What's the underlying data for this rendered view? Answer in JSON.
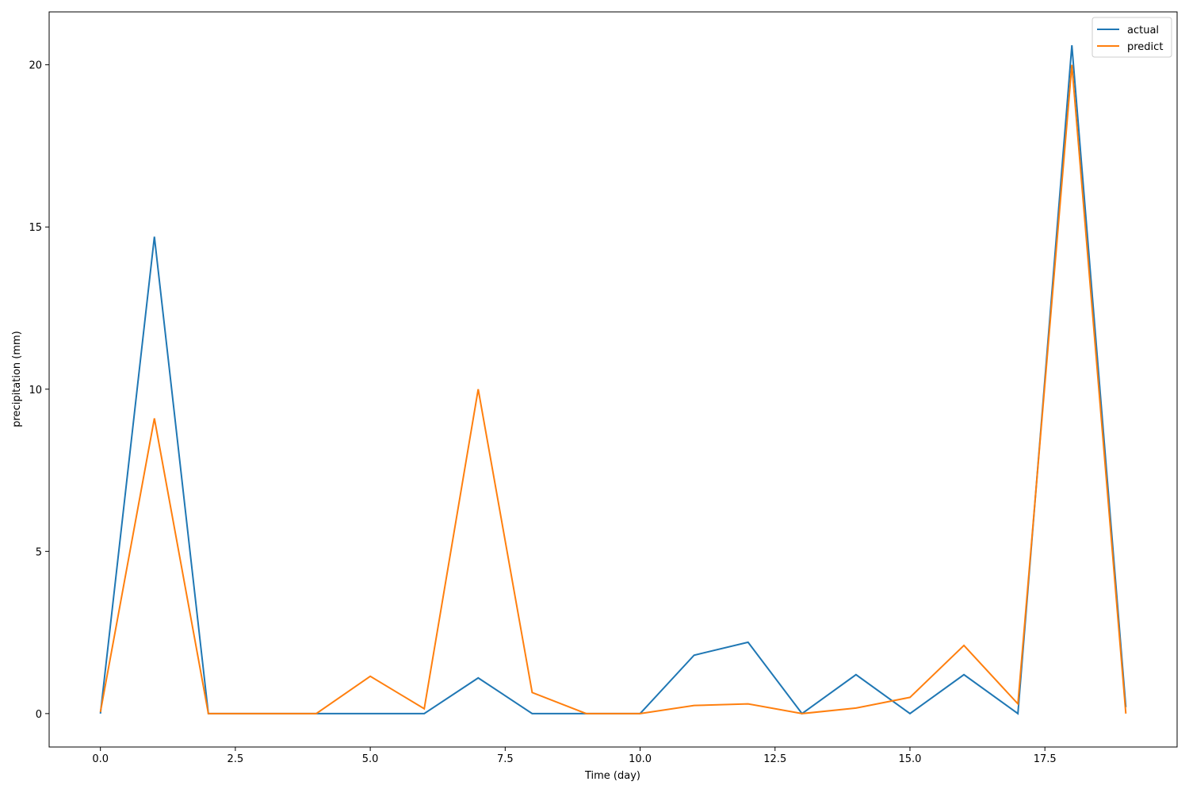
{
  "chart_data": {
    "type": "line",
    "xlabel": "Time  (day)",
    "ylabel": "precipitation  (mm)",
    "x": [
      0,
      1,
      2,
      3,
      4,
      5,
      6,
      7,
      8,
      9,
      10,
      11,
      12,
      13,
      14,
      15,
      16,
      17,
      18,
      19
    ],
    "series": [
      {
        "name": "actual",
        "color": "#1f77b4",
        "values": [
          0,
          14.7,
          0,
          0,
          0,
          0,
          0,
          1.1,
          0,
          0,
          0,
          1.8,
          2.2,
          0,
          1.2,
          0,
          1.2,
          0,
          20.6,
          0.2
        ]
      },
      {
        "name": "predict",
        "color": "#ff7f0e",
        "values": [
          0.05,
          9.1,
          0,
          0,
          0,
          1.15,
          0.15,
          10.0,
          0.65,
          0,
          0,
          0.25,
          0.3,
          0,
          0.17,
          0.5,
          2.1,
          0.3,
          20.0,
          0.0
        ]
      }
    ],
    "xlim": [
      -0.95,
      19.95
    ],
    "xticks": [
      {
        "value": 0,
        "label": "0.0"
      },
      2.5,
      {
        "value": 5,
        "label": "5.0"
      },
      7.5,
      {
        "value": 10,
        "label": "10.0"
      },
      12.5,
      {
        "value": 15,
        "label": "15.0"
      },
      17.5
    ],
    "ylim": [
      -1.03,
      21.63
    ],
    "yticks": [
      0,
      5,
      10,
      15,
      20
    ],
    "legend": "upper right"
  }
}
